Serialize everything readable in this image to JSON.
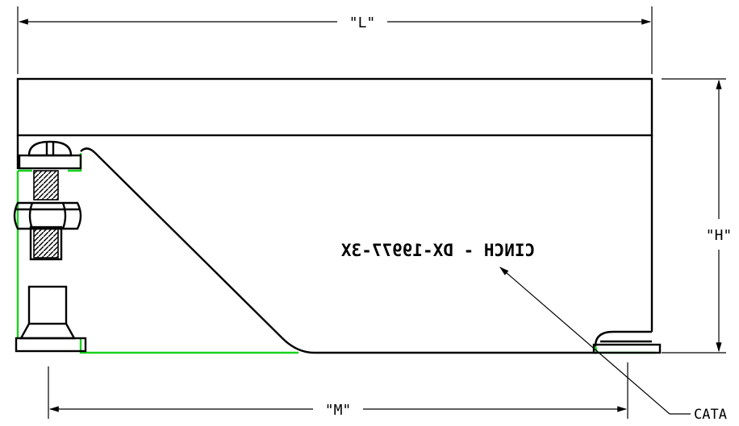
{
  "dimensions": {
    "length_label": "\"L\"",
    "height_label": "\"H\"",
    "mount_label": "\"M\""
  },
  "part_marking": "CINCH - DX-19977-3X",
  "callout": {
    "label": "CATA"
  },
  "colors": {
    "outline": "#000000",
    "highlight": "#19d11e",
    "background": "#ffffff"
  }
}
